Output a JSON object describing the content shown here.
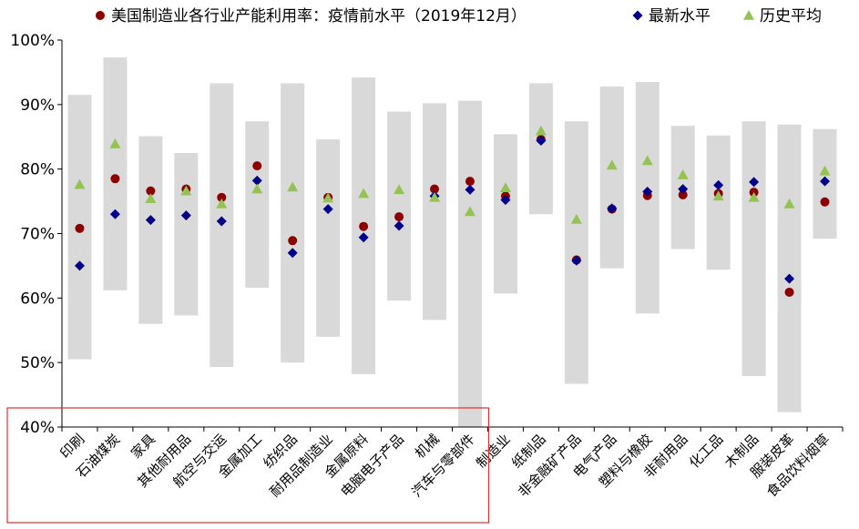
{
  "chart_data": {
    "type": "scatter",
    "title": "",
    "xlabel": "",
    "ylabel": "",
    "ylim": [
      40,
      100
    ],
    "yticks": [
      40,
      50,
      60,
      70,
      80,
      90,
      100
    ],
    "ytick_labels": [
      "40%",
      "50%",
      "60%",
      "70%",
      "80%",
      "90%",
      "100%"
    ],
    "grid": false,
    "legend_position": "top",
    "categories": [
      "印刷",
      "石油煤炭",
      "家具",
      "其他耐用品",
      "航空与交运",
      "金属加工",
      "纺织品",
      "耐用品制造业",
      "金属原料",
      "电脑电子产品",
      "机械",
      "汽车与零部件",
      "制造业",
      "纸制品",
      "非金融矿产品",
      "电气产品",
      "塑料与橡胶",
      "非耐用品",
      "化工品",
      "木制品",
      "服装皮革",
      "食品饮料烟草"
    ],
    "range": {
      "name": "",
      "color": "#d9d9d9",
      "low": [
        50.5,
        61.2,
        56.0,
        57.3,
        49.3,
        61.6,
        50.0,
        54.0,
        48.2,
        59.6,
        56.6,
        40.0,
        60.7,
        73.0,
        46.7,
        64.6,
        57.6,
        67.6,
        64.4,
        47.9,
        42.3,
        69.2
      ],
      "high": [
        91.5,
        97.3,
        85.1,
        82.5,
        93.3,
        87.4,
        93.3,
        84.6,
        94.2,
        88.9,
        90.2,
        90.6,
        85.4,
        93.3,
        87.4,
        92.8,
        93.5,
        86.7,
        85.2,
        87.4,
        86.9,
        86.2
      ]
    },
    "series": [
      {
        "name": "美国制造业各行业产能利用率：疫情前水平（2019年12月）",
        "marker": "circle",
        "color": "#8b0000",
        "values": [
          70.8,
          78.5,
          76.6,
          76.9,
          75.6,
          80.5,
          68.9,
          75.6,
          71.1,
          72.6,
          76.9,
          78.1,
          75.8,
          84.6,
          65.9,
          73.8,
          75.9,
          76.0,
          76.2,
          76.4,
          60.9,
          74.9
        ]
      },
      {
        "name": "最新水平",
        "marker": "diamond",
        "color": "#00008b",
        "values": [
          65.0,
          73.0,
          72.1,
          72.8,
          71.9,
          78.2,
          67.0,
          73.8,
          69.4,
          71.2,
          75.8,
          76.8,
          75.2,
          84.4,
          65.8,
          73.9,
          76.5,
          76.9,
          77.5,
          78.0,
          63.0,
          78.1
        ]
      },
      {
        "name": "历史平均",
        "marker": "triangle",
        "color": "#92c353",
        "values": [
          77.6,
          83.9,
          75.4,
          76.6,
          74.6,
          76.9,
          77.2,
          75.5,
          76.2,
          76.8,
          75.6,
          73.4,
          77.1,
          85.9,
          72.2,
          80.6,
          81.3,
          79.1,
          75.8,
          75.6,
          74.6,
          79.7
        ]
      }
    ],
    "annotation": {
      "type": "highlight-box",
      "color": "#e03030",
      "from_category": 0,
      "to_category": 11
    }
  }
}
